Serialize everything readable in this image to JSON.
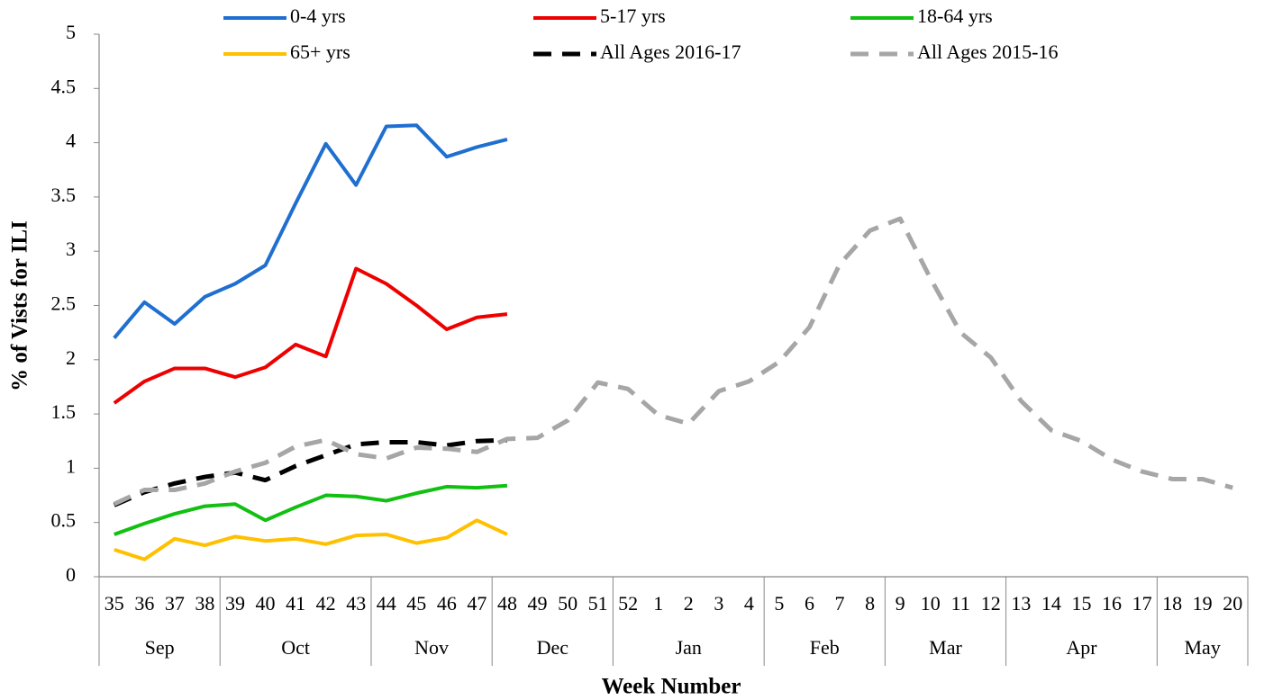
{
  "chart_data": {
    "type": "line",
    "x_title": "Week Number",
    "y_title": "% of Vists for ILI",
    "categories": [
      {
        "week": "35",
        "month": "Sep"
      },
      {
        "week": "36",
        "month": "Sep"
      },
      {
        "week": "37",
        "month": "Sep"
      },
      {
        "week": "38",
        "month": "Sep"
      },
      {
        "week": "39",
        "month": "Oct"
      },
      {
        "week": "40",
        "month": "Oct"
      },
      {
        "week": "41",
        "month": "Oct"
      },
      {
        "week": "42",
        "month": "Oct"
      },
      {
        "week": "43",
        "month": "Oct"
      },
      {
        "week": "44",
        "month": "Nov"
      },
      {
        "week": "45",
        "month": "Nov"
      },
      {
        "week": "46",
        "month": "Nov"
      },
      {
        "week": "47",
        "month": "Nov"
      },
      {
        "week": "48",
        "month": "Dec"
      },
      {
        "week": "49",
        "month": "Dec"
      },
      {
        "week": "50",
        "month": "Dec"
      },
      {
        "week": "51",
        "month": "Dec"
      },
      {
        "week": "52",
        "month": "Jan"
      },
      {
        "week": "1",
        "month": "Jan"
      },
      {
        "week": "2",
        "month": "Jan"
      },
      {
        "week": "3",
        "month": "Jan"
      },
      {
        "week": "4",
        "month": "Jan"
      },
      {
        "week": "5",
        "month": "Feb"
      },
      {
        "week": "6",
        "month": "Feb"
      },
      {
        "week": "7",
        "month": "Feb"
      },
      {
        "week": "8",
        "month": "Feb"
      },
      {
        "week": "9",
        "month": "Mar"
      },
      {
        "week": "10",
        "month": "Mar"
      },
      {
        "week": "11",
        "month": "Mar"
      },
      {
        "week": "12",
        "month": "Mar"
      },
      {
        "week": "13",
        "month": "Apr"
      },
      {
        "week": "14",
        "month": "Apr"
      },
      {
        "week": "15",
        "month": "Apr"
      },
      {
        "week": "16",
        "month": "Apr"
      },
      {
        "week": "17",
        "month": "Apr"
      },
      {
        "week": "18",
        "month": "May"
      },
      {
        "week": "19",
        "month": "May"
      },
      {
        "week": "20",
        "month": "May"
      }
    ],
    "series": [
      {
        "name": "0-4 yrs",
        "color": "#1f6fd1",
        "dashed": false,
        "values": [
          2.2,
          2.53,
          2.33,
          2.58,
          2.7,
          2.87,
          3.44,
          3.99,
          3.61,
          4.15,
          4.16,
          3.87,
          3.96,
          4.03,
          null,
          null,
          null,
          null,
          null,
          null,
          null,
          null,
          null,
          null,
          null,
          null,
          null,
          null,
          null,
          null,
          null,
          null,
          null,
          null,
          null,
          null,
          null,
          null
        ]
      },
      {
        "name": "5-17 yrs",
        "color": "#ee0000",
        "dashed": false,
        "values": [
          1.6,
          1.8,
          1.92,
          1.92,
          1.84,
          1.93,
          2.14,
          2.03,
          2.84,
          2.7,
          2.5,
          2.28,
          2.39,
          2.42,
          null,
          null,
          null,
          null,
          null,
          null,
          null,
          null,
          null,
          null,
          null,
          null,
          null,
          null,
          null,
          null,
          null,
          null,
          null,
          null,
          null,
          null,
          null,
          null
        ]
      },
      {
        "name": "18-64 yrs",
        "color": "#11c011",
        "dashed": false,
        "values": [
          0.39,
          0.49,
          0.58,
          0.65,
          0.67,
          0.52,
          0.64,
          0.75,
          0.74,
          0.7,
          0.77,
          0.83,
          0.82,
          0.84,
          null,
          null,
          null,
          null,
          null,
          null,
          null,
          null,
          null,
          null,
          null,
          null,
          null,
          null,
          null,
          null,
          null,
          null,
          null,
          null,
          null,
          null,
          null,
          null
        ]
      },
      {
        "name": "65+ yrs",
        "color": "#ffc000",
        "dashed": false,
        "values": [
          0.25,
          0.16,
          0.35,
          0.29,
          0.37,
          0.33,
          0.35,
          0.3,
          0.38,
          0.39,
          0.31,
          0.36,
          0.52,
          0.39,
          null,
          null,
          null,
          null,
          null,
          null,
          null,
          null,
          null,
          null,
          null,
          null,
          null,
          null,
          null,
          null,
          null,
          null,
          null,
          null,
          null,
          null,
          null,
          null
        ]
      },
      {
        "name": "All Ages 2016-17",
        "color": "#000000",
        "dashed": true,
        "values": [
          0.66,
          0.78,
          0.86,
          0.92,
          0.96,
          0.89,
          1.02,
          1.12,
          1.22,
          1.24,
          1.24,
          1.21,
          1.25,
          1.26,
          null,
          null,
          null,
          null,
          null,
          null,
          null,
          null,
          null,
          null,
          null,
          null,
          null,
          null,
          null,
          null,
          null,
          null,
          null,
          null,
          null,
          null,
          null,
          null
        ]
      },
      {
        "name": "All Ages 2015-16",
        "color": "#a6a6a6",
        "dashed": true,
        "values": [
          0.67,
          0.8,
          0.8,
          0.86,
          0.97,
          1.05,
          1.2,
          1.26,
          1.13,
          1.09,
          1.19,
          1.18,
          1.15,
          1.27,
          1.28,
          1.44,
          1.79,
          1.73,
          1.49,
          1.41,
          1.71,
          1.8,
          1.98,
          2.3,
          2.88,
          3.19,
          3.3,
          2.75,
          2.25,
          2.02,
          1.62,
          1.35,
          1.25,
          1.08,
          0.97,
          0.9,
          0.9,
          0.82
        ]
      }
    ],
    "ylim": [
      0,
      5
    ],
    "yticks": [
      0,
      0.5,
      1,
      1.5,
      2,
      2.5,
      3,
      3.5,
      4,
      4.5,
      5
    ],
    "legend": "top"
  }
}
